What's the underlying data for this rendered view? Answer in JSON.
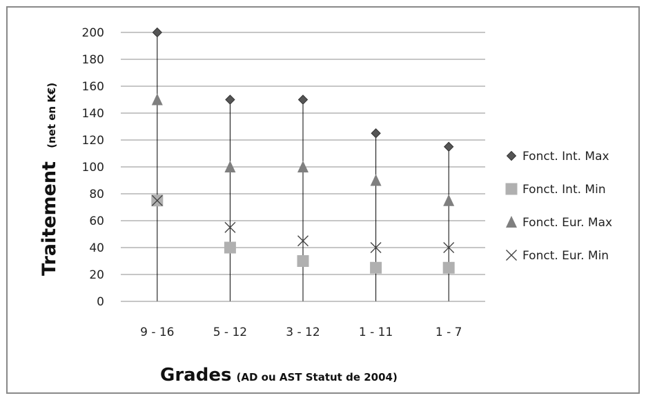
{
  "chart_data": {
    "type": "scatter",
    "categories": [
      "9 - 16",
      "5 - 12",
      "3 - 12",
      "1 - 11",
      "1 - 7"
    ],
    "series": [
      {
        "name": "Fonct. Int. Max",
        "marker": "diamond",
        "color": "#555555",
        "values": [
          200,
          150,
          150,
          125,
          115
        ]
      },
      {
        "name": "Fonct. Int. Min",
        "marker": "square",
        "color": "#b0b0b0",
        "values": [
          75,
          40,
          30,
          25,
          25
        ]
      },
      {
        "name": "Fonct. Eur. Max",
        "marker": "triangle",
        "color": "#7f7f7f",
        "values": [
          150,
          100,
          100,
          90,
          75
        ]
      },
      {
        "name": "Fonct. Eur. Min",
        "marker": "x",
        "color": "#444444",
        "values": [
          75,
          55,
          45,
          40,
          40
        ]
      }
    ],
    "ylim": [
      0,
      200
    ],
    "yticks": [
      0,
      20,
      40,
      60,
      80,
      100,
      120,
      140,
      160,
      180,
      200
    ],
    "ylabel": "Traitement",
    "ylabel_sub": "(net en K€)",
    "xlabel": "Grades",
    "xlabel_sub": "(AD ou AST  Statut de 2004)",
    "grid": true,
    "legend_position": "right",
    "drop_lines": true
  }
}
